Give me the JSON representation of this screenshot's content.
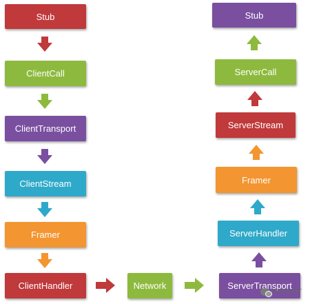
{
  "colors": {
    "red": "#C0393B",
    "green": "#8DBA3E",
    "purple": "#7A4FA0",
    "cyan": "#2FA9C9",
    "orange": "#F39530"
  },
  "client": {
    "stub": "Stub",
    "call": "ClientCall",
    "transport": "ClientTransport",
    "stream": "ClientStream",
    "framer": "Framer",
    "handler": "ClientHandler"
  },
  "network": "Network",
  "server": {
    "stub": "Stub",
    "call": "ServerCall",
    "stream": "ServerStream",
    "framer": "Framer",
    "handler": "ServerHandler",
    "transport": "ServerTransport"
  },
  "watermark": "IPDCHAT"
}
